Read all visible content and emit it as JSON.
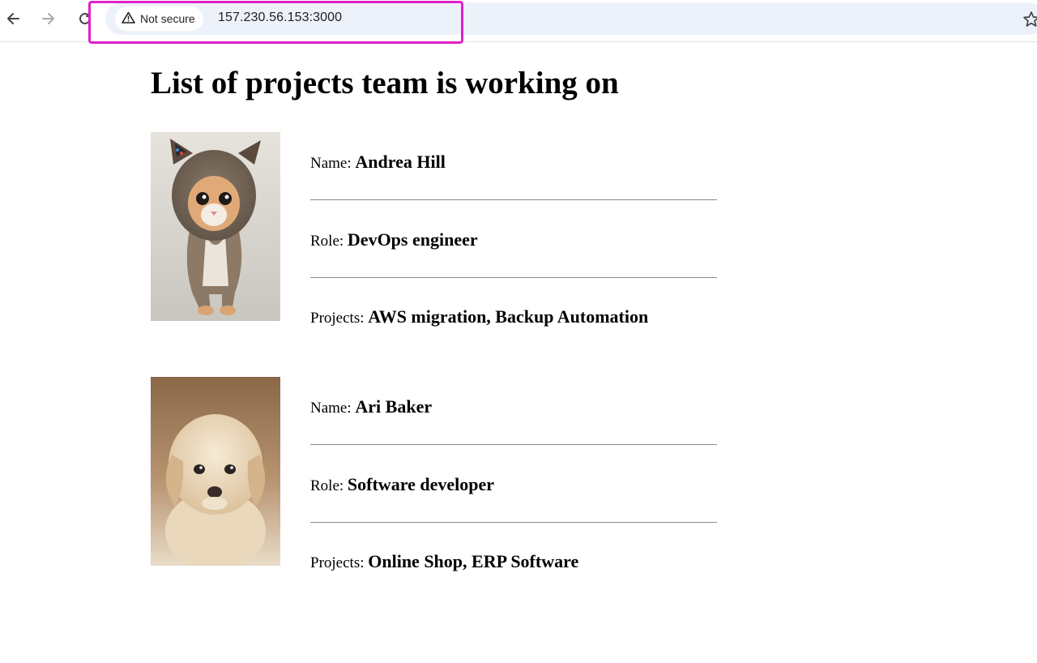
{
  "browser": {
    "security_label": "Not secure",
    "url": "157.230.56.153:3000",
    "highlight_color": "#e020c8",
    "icons": [
      "back-icon",
      "forward-icon",
      "reload-icon",
      "warning-icon",
      "star-icon"
    ]
  },
  "page": {
    "title": "List of projects team is working on",
    "members": [
      {
        "name_label": "Name:",
        "name": "Andrea Hill",
        "role_label": "Role:",
        "role": "DevOps engineer",
        "projects_label": "Projects:",
        "projects": "AWS migration, Backup Automation",
        "photo": "kitten-in-hood"
      },
      {
        "name_label": "Name:",
        "name": "Ari Baker",
        "role_label": "Role:",
        "role": "Software developer",
        "projects_label": "Projects:",
        "projects": "Online Shop, ERP Software",
        "photo": "puppy"
      }
    ]
  }
}
